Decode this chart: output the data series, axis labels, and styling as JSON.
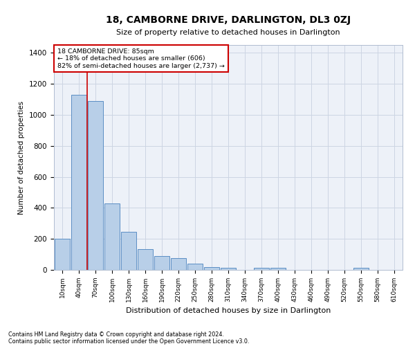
{
  "title": "18, CAMBORNE DRIVE, DARLINGTON, DL3 0ZJ",
  "subtitle": "Size of property relative to detached houses in Darlington",
  "xlabel": "Distribution of detached houses by size in Darlington",
  "ylabel": "Number of detached properties",
  "footnote1": "Contains HM Land Registry data © Crown copyright and database right 2024.",
  "footnote2": "Contains public sector information licensed under the Open Government Licence v3.0.",
  "annotation_title": "18 CAMBORNE DRIVE: 85sqm",
  "annotation_line1": "← 18% of detached houses are smaller (606)",
  "annotation_line2": "82% of semi-detached houses are larger (2,737) →",
  "bar_color": "#b8cfe8",
  "bar_edge_color": "#5b8ec4",
  "red_line_color": "#cc0000",
  "annotation_box_color": "#cc0000",
  "grid_color": "#ccd5e3",
  "background_color": "#edf1f8",
  "categories": [
    "10sqm",
    "40sqm",
    "70sqm",
    "100sqm",
    "130sqm",
    "160sqm",
    "190sqm",
    "220sqm",
    "250sqm",
    "280sqm",
    "310sqm",
    "340sqm",
    "370sqm",
    "400sqm",
    "430sqm",
    "460sqm",
    "490sqm",
    "520sqm",
    "550sqm",
    "580sqm",
    "610sqm"
  ],
  "values": [
    200,
    1130,
    1090,
    430,
    245,
    135,
    90,
    75,
    40,
    20,
    12,
    0,
    12,
    12,
    0,
    0,
    0,
    0,
    12,
    0,
    0
  ],
  "ylim": [
    0,
    1450
  ],
  "yticks": [
    0,
    200,
    400,
    600,
    800,
    1000,
    1200,
    1400
  ],
  "red_line_x": 1.5
}
